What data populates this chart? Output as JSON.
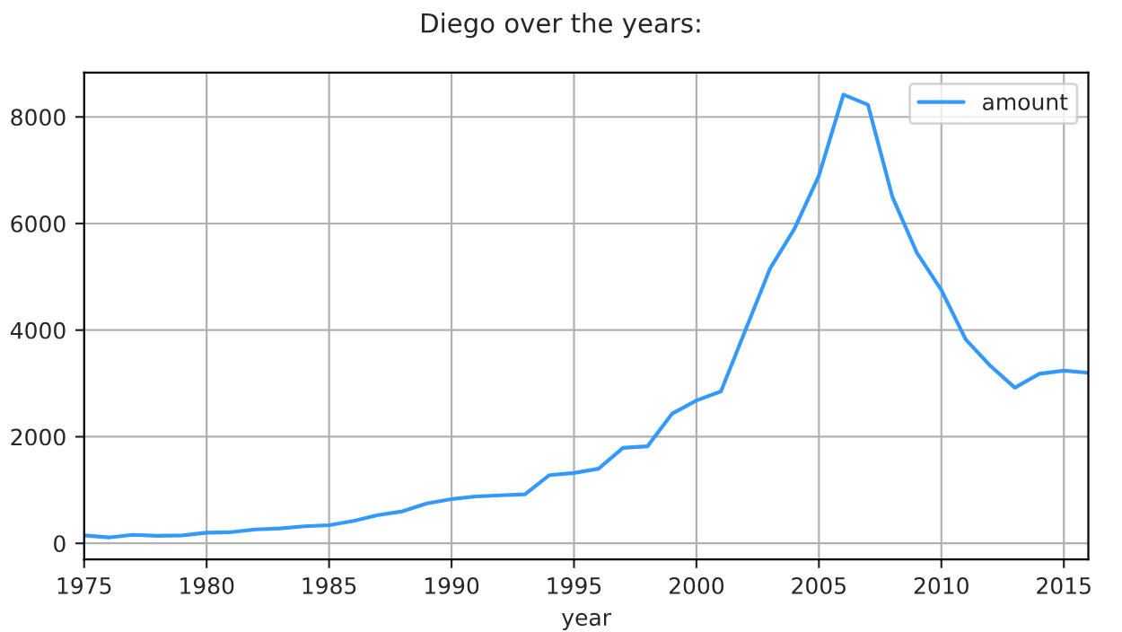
{
  "chart_data": {
    "type": "line",
    "title": "Diego over the years:",
    "xlabel": "year",
    "x": [
      1975,
      1976,
      1977,
      1978,
      1979,
      1980,
      1981,
      1982,
      1983,
      1984,
      1985,
      1986,
      1987,
      1988,
      1989,
      1990,
      1991,
      1992,
      1993,
      1994,
      1995,
      1996,
      1997,
      1998,
      1999,
      2000,
      2001,
      2002,
      2003,
      2004,
      2005,
      2006,
      2007,
      2008,
      2009,
      2010,
      2011,
      2012,
      2013,
      2014,
      2015,
      2016
    ],
    "series": [
      {
        "name": "amount",
        "color": "#3399ff",
        "values": [
          150,
          110,
          160,
          140,
          150,
          200,
          210,
          260,
          280,
          320,
          340,
          420,
          530,
          600,
          750,
          830,
          880,
          900,
          920,
          1280,
          1320,
          1400,
          1790,
          1820,
          2430,
          2680,
          2850,
          4000,
          5150,
          5900,
          6900,
          8420,
          8230,
          6500,
          5450,
          4750,
          3820,
          3330,
          2920,
          3180,
          3240,
          3200
        ]
      }
    ],
    "xlim": [
      1975,
      2016
    ],
    "xticks": [
      1975,
      1980,
      1985,
      1990,
      1995,
      2000,
      2005,
      2010,
      2015
    ],
    "ylim": [
      -300,
      8830
    ],
    "yticks": [
      0,
      2000,
      4000,
      6000,
      8000
    ],
    "grid": true,
    "legend": "top right"
  }
}
